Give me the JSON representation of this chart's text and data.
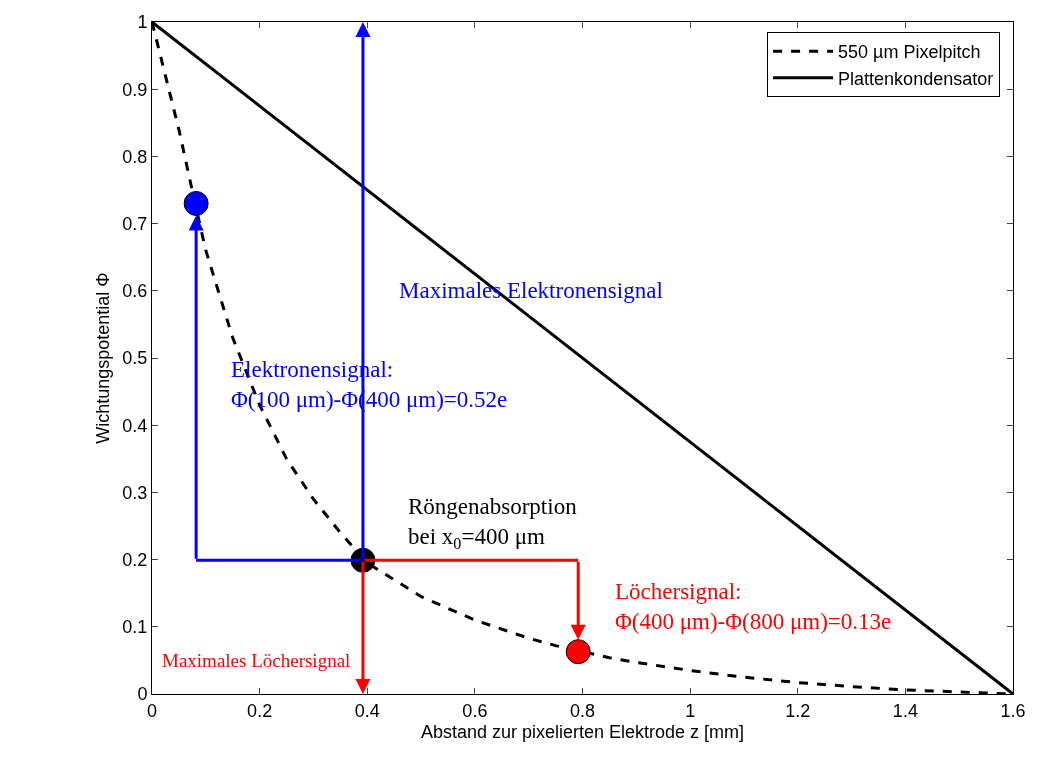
{
  "chart_data": {
    "type": "line",
    "xlabel": "Abstand zur pixelierten Elektrode z [mm]",
    "ylabel": "Wichtungspotential Φ",
    "xlim": [
      0,
      1.6
    ],
    "xticks": [
      0,
      0.2,
      0.4,
      0.6,
      0.8,
      1,
      1.2,
      1.4,
      1.6
    ],
    "ylim": [
      0,
      1
    ],
    "yticks": [
      0,
      0.1,
      0.2,
      0.3,
      0.4,
      0.5,
      0.6,
      0.7,
      0.8,
      0.9,
      1
    ],
    "legend": "top right",
    "series": [
      {
        "name": "550 µm Pixelpitch",
        "color": "#000000",
        "line_style": "dashed",
        "x": [
          0,
          0.05,
          0.08,
          0.1,
          0.15,
          0.2,
          0.25,
          0.3,
          0.35,
          0.4,
          0.5,
          0.6,
          0.7,
          0.75,
          0.85,
          0.9,
          1.0,
          1.1,
          1.2,
          1.3,
          1.4,
          1.5,
          1.6
        ],
        "values": [
          1,
          0.84,
          0.73,
          0.66,
          0.53,
          0.43,
          0.35,
          0.29,
          0.24,
          0.195,
          0.145,
          0.11,
          0.083,
          0.072,
          0.054,
          0.047,
          0.035,
          0.025,
          0.017,
          0.011,
          0.006,
          0.003,
          0
        ]
      },
      {
        "name": "Plattenkondensator",
        "color": "#000000",
        "line_style": "solid",
        "x": [
          0,
          1.6
        ],
        "values": [
          1,
          0
        ]
      },
      {
        "type": "scatter",
        "color": "#0000ff",
        "x": [
          0.082
        ],
        "values": [
          0.73
        ]
      },
      {
        "type": "scatter",
        "color": "#000000",
        "x": [
          0.392
        ],
        "values": [
          0.199
        ]
      },
      {
        "type": "scatter",
        "color": "#ff0000",
        "x": [
          0.792
        ],
        "values": [
          0.063
        ]
      }
    ],
    "annotations": [
      "Maximales Elektronensignal",
      "Elektronensignal:\nΦ(100 μm)-Φ(400 μm)=0.52e",
      "Röngenabsorption\nbei x$_{0}$=400 μm",
      "Löchersignal:\nΦ(400 μm)-Φ(800 μm)=0.13e",
      "Maximales Löchersignal"
    ]
  }
}
